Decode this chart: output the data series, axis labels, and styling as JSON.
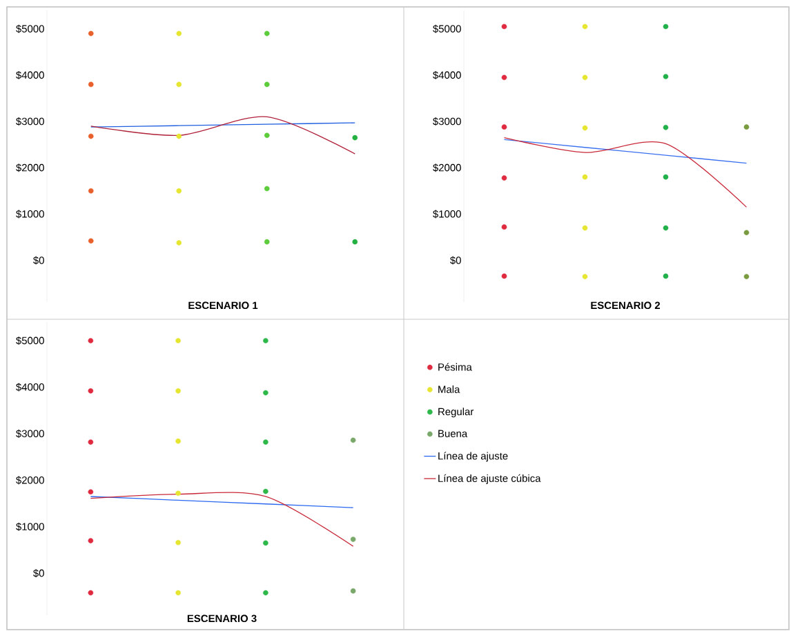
{
  "chart_data": [
    {
      "type": "scatter",
      "xlabel": "ESCENARIO 1",
      "categories": [
        null,
        null,
        null,
        null
      ],
      "ylim": [
        -900,
        5400
      ],
      "marker": "circle",
      "legend": false,
      "yticks": [
        {
          "value": 0,
          "label": "$0"
        },
        {
          "value": 1000,
          "label": "$1000"
        },
        {
          "value": 2000,
          "label": "$2000"
        },
        {
          "value": 3000,
          "label": "$3000"
        },
        {
          "value": 4000,
          "label": "$4000"
        },
        {
          "value": 5000,
          "label": "$5000"
        }
      ],
      "series": [
        {
          "color": "#e8602c",
          "values": [
            4900,
            null,
            null,
            null
          ]
        },
        {
          "color": "#e8602c",
          "values": [
            3800,
            null,
            null,
            null
          ]
        },
        {
          "color": "#e8602c",
          "values": [
            2680,
            null,
            null,
            null
          ]
        },
        {
          "color": "#e8602c",
          "values": [
            1500,
            null,
            null,
            null
          ]
        },
        {
          "color": "#e8602c",
          "values": [
            420,
            null,
            null,
            null
          ]
        },
        {
          "color": "#e6e630",
          "values": [
            null,
            4900,
            null,
            null
          ]
        },
        {
          "color": "#e6e630",
          "values": [
            null,
            3800,
            null,
            null
          ]
        },
        {
          "color": "#e6e630",
          "values": [
            null,
            2680,
            null,
            null
          ]
        },
        {
          "color": "#e6e630",
          "values": [
            null,
            1500,
            null,
            null
          ]
        },
        {
          "color": "#e6e630",
          "values": [
            null,
            380,
            null,
            null
          ]
        },
        {
          "color": "#5ccc3a",
          "values": [
            null,
            null,
            4900,
            null
          ]
        },
        {
          "color": "#5ccc3a",
          "values": [
            null,
            null,
            3800,
            null
          ]
        },
        {
          "color": "#5ccc3a",
          "values": [
            null,
            null,
            2700,
            null
          ]
        },
        {
          "color": "#5ccc3a",
          "values": [
            null,
            null,
            1550,
            null
          ]
        },
        {
          "color": "#5ccc3a",
          "values": [
            null,
            null,
            400,
            null
          ]
        },
        {
          "color": "#22b040",
          "values": [
            null,
            null,
            null,
            2650
          ]
        },
        {
          "color": "#22b040",
          "values": [
            null,
            null,
            null,
            400
          ]
        },
        {
          "type": "line",
          "marker": "none",
          "color": "#1f5fe0",
          "values": [
            2880,
            2910,
            2940,
            2970
          ]
        },
        {
          "type": "line",
          "marker": "none",
          "color": "#b02038",
          "values": [
            2900,
            2700,
            3100,
            2300
          ]
        }
      ]
    },
    {
      "type": "scatter",
      "xlabel": "ESCENARIO 2",
      "categories": [
        null,
        null,
        null,
        null
      ],
      "ylim": [
        -900,
        5400
      ],
      "marker": "circle",
      "legend": false,
      "yticks": [
        {
          "value": 0,
          "label": "$0"
        },
        {
          "value": 1000,
          "label": "$1000"
        },
        {
          "value": 2000,
          "label": "$2000"
        },
        {
          "value": 3000,
          "label": "$3000"
        },
        {
          "value": 4000,
          "label": "$4000"
        },
        {
          "value": 5000,
          "label": "$5000"
        }
      ],
      "series": [
        {
          "color": "#e02a40",
          "values": [
            5050,
            null,
            null,
            null
          ]
        },
        {
          "color": "#e02a40",
          "values": [
            3950,
            null,
            null,
            null
          ]
        },
        {
          "color": "#e02a40",
          "values": [
            2880,
            null,
            null,
            null
          ]
        },
        {
          "color": "#e02a40",
          "values": [
            1780,
            null,
            null,
            null
          ]
        },
        {
          "color": "#e02a40",
          "values": [
            720,
            null,
            null,
            null
          ]
        },
        {
          "color": "#e02a40",
          "values": [
            -340,
            null,
            null,
            null
          ]
        },
        {
          "color": "#e6e630",
          "values": [
            null,
            5050,
            null,
            null
          ]
        },
        {
          "color": "#e6e630",
          "values": [
            null,
            3950,
            null,
            null
          ]
        },
        {
          "color": "#e6e630",
          "values": [
            null,
            2860,
            null,
            null
          ]
        },
        {
          "color": "#e6e630",
          "values": [
            null,
            1800,
            null,
            null
          ]
        },
        {
          "color": "#e6e630",
          "values": [
            null,
            700,
            null,
            null
          ]
        },
        {
          "color": "#e6e630",
          "values": [
            null,
            -350,
            null,
            null
          ]
        },
        {
          "color": "#22b04a",
          "values": [
            null,
            null,
            5050,
            null
          ]
        },
        {
          "color": "#22b04a",
          "values": [
            null,
            null,
            3970,
            null
          ]
        },
        {
          "color": "#22b04a",
          "values": [
            null,
            null,
            2870,
            null
          ]
        },
        {
          "color": "#22b04a",
          "values": [
            null,
            null,
            1800,
            null
          ]
        },
        {
          "color": "#22b04a",
          "values": [
            null,
            null,
            700,
            null
          ]
        },
        {
          "color": "#22b04a",
          "values": [
            null,
            null,
            -340,
            null
          ]
        },
        {
          "color": "#7a9a40",
          "values": [
            null,
            null,
            null,
            2880
          ]
        },
        {
          "color": "#7a9a40",
          "values": [
            null,
            null,
            null,
            600
          ]
        },
        {
          "color": "#7a9a40",
          "values": [
            null,
            null,
            null,
            -350
          ]
        },
        {
          "type": "line",
          "marker": "none",
          "color": "#3a70f0",
          "values": [
            2610,
            2440,
            2270,
            2100
          ]
        },
        {
          "type": "line",
          "marker": "none",
          "color": "#c82838",
          "values": [
            2650,
            2330,
            2520,
            1150
          ]
        }
      ]
    },
    {
      "type": "scatter",
      "xlabel": "ESCENARIO 3",
      "categories": [
        null,
        null,
        null,
        null
      ],
      "ylim": [
        -900,
        5400
      ],
      "marker": "circle",
      "legend": "right",
      "yticks": [
        {
          "value": 0,
          "label": "$0"
        },
        {
          "value": 1000,
          "label": "$1000"
        },
        {
          "value": 2000,
          "label": "$2000"
        },
        {
          "value": 3000,
          "label": "$3000"
        },
        {
          "value": 4000,
          "label": "$4000"
        },
        {
          "value": 5000,
          "label": "$5000"
        }
      ],
      "series": [
        {
          "name": "Pésima",
          "color": "#e02a40",
          "values": [
            5000,
            null,
            null,
            null
          ]
        },
        {
          "color": "#e02a40",
          "values": [
            3920,
            null,
            null,
            null
          ]
        },
        {
          "color": "#e02a40",
          "values": [
            2820,
            null,
            null,
            null
          ]
        },
        {
          "color": "#e02a40",
          "values": [
            1750,
            null,
            null,
            null
          ]
        },
        {
          "color": "#e02a40",
          "values": [
            700,
            null,
            null,
            null
          ]
        },
        {
          "color": "#e02a40",
          "values": [
            -420,
            null,
            null,
            null
          ]
        },
        {
          "name": "Mala",
          "color": "#e6e630",
          "values": [
            null,
            5000,
            null,
            null
          ]
        },
        {
          "color": "#e6e630",
          "values": [
            null,
            3920,
            null,
            null
          ]
        },
        {
          "color": "#e6e630",
          "values": [
            null,
            2840,
            null,
            null
          ]
        },
        {
          "color": "#e6e630",
          "values": [
            null,
            1720,
            null,
            null
          ]
        },
        {
          "color": "#e6e630",
          "values": [
            null,
            660,
            null,
            null
          ]
        },
        {
          "color": "#e6e630",
          "values": [
            null,
            -420,
            null,
            null
          ]
        },
        {
          "name": "Regular",
          "color": "#2eb84a",
          "values": [
            null,
            null,
            5000,
            null
          ]
        },
        {
          "color": "#2eb84a",
          "values": [
            null,
            null,
            3880,
            null
          ]
        },
        {
          "color": "#2eb84a",
          "values": [
            null,
            null,
            2820,
            null
          ]
        },
        {
          "color": "#2eb84a",
          "values": [
            null,
            null,
            1760,
            null
          ]
        },
        {
          "color": "#2eb84a",
          "values": [
            null,
            null,
            650,
            null
          ]
        },
        {
          "color": "#2eb84a",
          "values": [
            null,
            null,
            -420,
            null
          ]
        },
        {
          "name": "Buena",
          "color": "#7aa86a",
          "values": [
            null,
            null,
            null,
            2860
          ]
        },
        {
          "color": "#7aa86a",
          "values": [
            null,
            null,
            null,
            730
          ]
        },
        {
          "color": "#7aa86a",
          "values": [
            null,
            null,
            null,
            -380
          ]
        },
        {
          "type": "line",
          "marker": "none",
          "name": "Línea de ajuste",
          "color": "#2a68f0",
          "values": [
            1650,
            1570,
            1490,
            1410
          ]
        },
        {
          "type": "line",
          "marker": "none",
          "name": "Línea de ajuste cúbica",
          "color": "#c82838",
          "values": [
            1610,
            1700,
            1650,
            580
          ]
        }
      ]
    }
  ]
}
